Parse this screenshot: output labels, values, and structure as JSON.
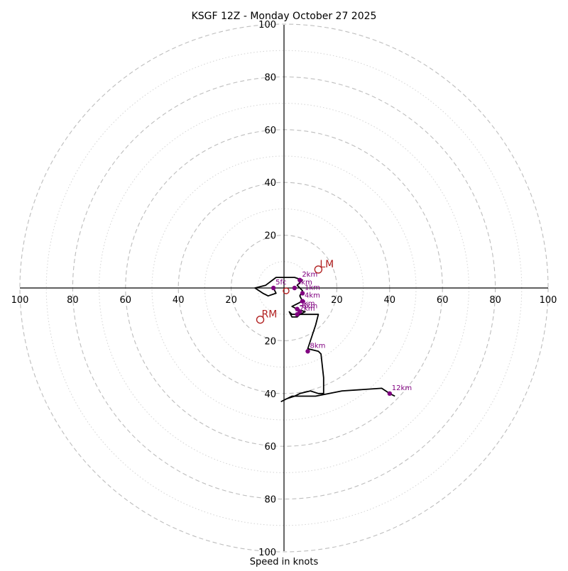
{
  "chart_data": {
    "type": "hodograph",
    "title": "KSGF 12Z - Monday October 27 2025",
    "xlabel": "Speed in knots",
    "ring_range": [
      0,
      100
    ],
    "major_rings": [
      20,
      40,
      60,
      80,
      100
    ],
    "minor_rings": [
      10,
      30,
      50,
      70,
      90
    ],
    "tick_labels_x_left": [
      "100",
      "80",
      "60",
      "40",
      "20"
    ],
    "tick_labels_x_right": [
      "20",
      "40",
      "60",
      "80",
      "100"
    ],
    "tick_labels_y_top": [
      "100",
      "80",
      "60",
      "40",
      "20"
    ],
    "tick_labels_y_bottom": [
      "20",
      "40",
      "60",
      "80",
      "100"
    ],
    "units": "knots",
    "hodograph_trace": [
      [
        -4,
        0
      ],
      [
        -3,
        -2
      ],
      [
        -6,
        -3
      ],
      [
        -8,
        -2
      ],
      [
        -11,
        0
      ],
      [
        -7,
        1
      ],
      [
        -3,
        4
      ],
      [
        4,
        4
      ],
      [
        7,
        3
      ],
      [
        5,
        1
      ],
      [
        7,
        -1
      ],
      [
        6,
        -3
      ],
      [
        7,
        -5
      ],
      [
        5,
        -6
      ],
      [
        3,
        -7
      ],
      [
        5,
        -8
      ],
      [
        8,
        -9
      ],
      [
        6,
        -10
      ],
      [
        5,
        -11
      ],
      [
        3,
        -11
      ],
      [
        2,
        -9
      ],
      [
        3,
        -10
      ],
      [
        6,
        -10
      ],
      [
        9,
        -10
      ],
      [
        13,
        -10
      ],
      [
        12,
        -14
      ],
      [
        10,
        -20
      ],
      [
        9,
        -23
      ],
      [
        13,
        -24
      ],
      [
        14,
        -25
      ],
      [
        15,
        -34
      ],
      [
        15,
        -40
      ],
      [
        13,
        -40
      ],
      [
        10,
        -39
      ],
      [
        6,
        -40
      ],
      [
        4,
        -41
      ],
      [
        1,
        -42
      ],
      [
        -1,
        -43
      ],
      [
        3,
        -41
      ],
      [
        6,
        -41
      ],
      [
        12,
        -41
      ],
      [
        22,
        -39
      ],
      [
        37,
        -38
      ],
      [
        40,
        -40
      ],
      [
        42,
        -41
      ]
    ],
    "height_labels": [
      {
        "label": "5fc",
        "u": -4,
        "v": 0
      },
      {
        "label": "2km",
        "u": 6,
        "v": 3
      },
      {
        "label": "3km",
        "u": 4,
        "v": 0
      },
      {
        "label": "1km",
        "u": 7,
        "v": -2
      },
      {
        "label": "4km",
        "u": 7,
        "v": -5
      },
      {
        "label": "5km",
        "u": 5,
        "v": -8
      },
      {
        "label": "6km",
        "u": 6,
        "v": -9
      },
      {
        "label": "7km",
        "u": 5,
        "v": -10
      },
      {
        "label": "8km",
        "u": 9,
        "v": -24
      },
      {
        "label": "12km",
        "u": 40,
        "v": -40
      }
    ],
    "storm_motions": [
      {
        "label": "LM",
        "u": 13,
        "v": 7
      },
      {
        "label": "RM",
        "u": -9,
        "v": -12
      }
    ],
    "mean_wind": {
      "label": "",
      "u": 0,
      "v": 0
    }
  }
}
